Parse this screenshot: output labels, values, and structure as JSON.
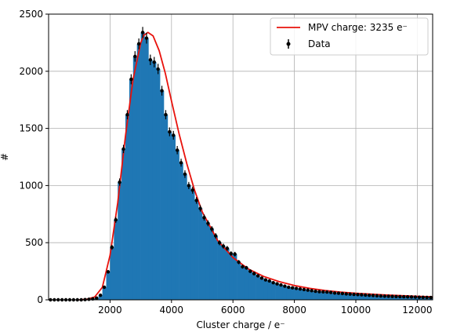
{
  "chart_data": {
    "type": "bar",
    "xlabel": "Cluster charge / e⁻",
    "ylabel": "#",
    "xlim": [
      0,
      12500
    ],
    "ylim": [
      0,
      2500
    ],
    "xticks": [
      2000,
      4000,
      6000,
      8000,
      10000,
      12000
    ],
    "xtick_labels": [
      "2000",
      "4000",
      "6000",
      "8000",
      "10000",
      "12000"
    ],
    "yticks": [
      0,
      500,
      1000,
      1500,
      2000,
      2500
    ],
    "ytick_labels": [
      "0",
      "500",
      "1000",
      "1500",
      "2000",
      "2500"
    ],
    "grid": true,
    "legend_position": "top-right",
    "legend": [
      {
        "label": "MPV charge: 3235 e⁻",
        "kind": "line"
      },
      {
        "label": "Data",
        "kind": "errorbar"
      }
    ],
    "colors": {
      "hist": "#1f77b4",
      "fit": "#e8120c",
      "data": "#000000",
      "grid": "#b0b0b0"
    },
    "bin_width": 125,
    "x": [
      62.5,
      187.5,
      312.5,
      437.5,
      562.5,
      687.5,
      812.5,
      937.5,
      1062.5,
      1187.5,
      1312.5,
      1437.5,
      1562.5,
      1687.5,
      1812.5,
      1937.5,
      2062.5,
      2187.5,
      2312.5,
      2437.5,
      2562.5,
      2687.5,
      2812.5,
      2937.5,
      3062.5,
      3187.5,
      3312.5,
      3437.5,
      3562.5,
      3687.5,
      3812.5,
      3937.5,
      4062.5,
      4187.5,
      4312.5,
      4437.5,
      4562.5,
      4687.5,
      4812.5,
      4937.5,
      5062.5,
      5187.5,
      5312.5,
      5437.5,
      5562.5,
      5687.5,
      5812.5,
      5937.5,
      6062.5,
      6187.5,
      6312.5,
      6437.5,
      6562.5,
      6687.5,
      6812.5,
      6937.5,
      7062.5,
      7187.5,
      7312.5,
      7437.5,
      7562.5,
      7687.5,
      7812.5,
      7937.5,
      8062.5,
      8187.5,
      8312.5,
      8437.5,
      8562.5,
      8687.5,
      8812.5,
      8937.5,
      9062.5,
      9187.5,
      9312.5,
      9437.5,
      9562.5,
      9687.5,
      9812.5,
      9937.5,
      10062.5,
      10187.5,
      10312.5,
      10437.5,
      10562.5,
      10687.5,
      10812.5,
      10937.5,
      11062.5,
      11187.5,
      11312.5,
      11437.5,
      11562.5,
      11687.5,
      11812.5,
      11937.5,
      12062.5,
      12187.5,
      12312.5,
      12437.5
    ],
    "counts": [
      0,
      0,
      0,
      0,
      0,
      0,
      0,
      0,
      0,
      2,
      5,
      8,
      15,
      40,
      110,
      245,
      460,
      700,
      1030,
      1320,
      1620,
      1930,
      2130,
      2240,
      2340,
      2290,
      2100,
      2080,
      2020,
      1830,
      1620,
      1470,
      1440,
      1310,
      1200,
      1100,
      1000,
      960,
      870,
      800,
      720,
      670,
      620,
      560,
      500,
      470,
      450,
      405,
      400,
      330,
      290,
      280,
      250,
      230,
      210,
      190,
      175,
      165,
      150,
      140,
      130,
      120,
      110,
      105,
      100,
      95,
      90,
      85,
      80,
      75,
      72,
      70,
      68,
      65,
      60,
      58,
      55,
      52,
      50,
      48,
      46,
      44,
      42,
      40,
      38,
      36,
      34,
      32,
      31,
      30,
      29,
      28,
      27,
      26,
      25,
      24,
      23,
      22,
      21,
      20
    ],
    "fit": {
      "label": "MPV charge: 3235 e⁻",
      "x": [
        1000,
        1250,
        1500,
        1750,
        2000,
        2250,
        2500,
        2750,
        3000,
        3100,
        3235,
        3400,
        3600,
        3800,
        4000,
        4250,
        4500,
        4750,
        5000,
        5500,
        6000,
        6500,
        7000,
        7500,
        8000,
        8500,
        9000,
        9500,
        10000,
        11000,
        12000,
        12500
      ],
      "y": [
        0,
        5,
        25,
        110,
        390,
        850,
        1430,
        1930,
        2250,
        2315,
        2340,
        2310,
        2180,
        1980,
        1740,
        1450,
        1190,
        960,
        770,
        520,
        370,
        270,
        205,
        160,
        125,
        100,
        82,
        68,
        58,
        42,
        31,
        27
      ]
    }
  }
}
